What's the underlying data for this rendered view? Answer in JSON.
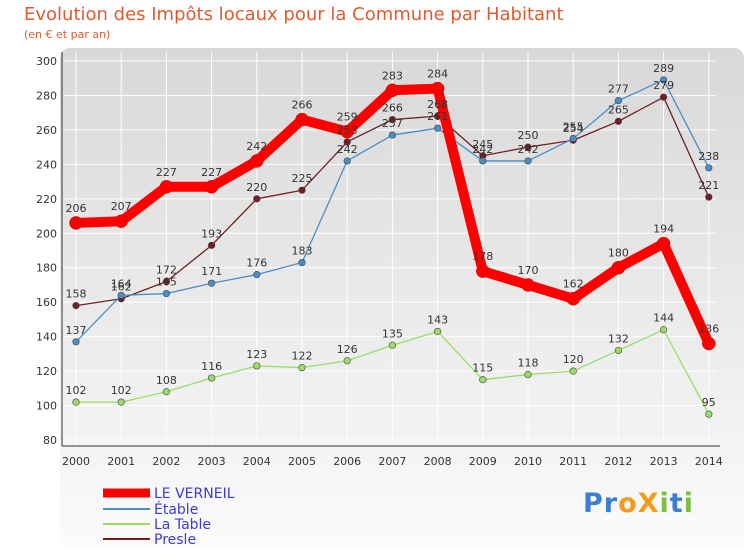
{
  "chart_data": {
    "type": "line",
    "title": "Evolution des Impôts locaux pour la Commune par Habitant",
    "subtitle": "(en € et par an)",
    "x": [
      "2000",
      "2001",
      "2002",
      "2003",
      "2004",
      "2005",
      "2006",
      "2007",
      "2008",
      "2009",
      "2010",
      "2011",
      "2012",
      "2013",
      "2014"
    ],
    "ylim": [
      80,
      300
    ],
    "yticks": [
      80,
      100,
      120,
      140,
      160,
      180,
      200,
      220,
      240,
      260,
      280,
      300
    ],
    "grid": true,
    "legend_position": "bottom-left",
    "series": [
      {
        "name": "LE VERNEIL",
        "color": "#ff0000",
        "values": [
          206,
          207,
          227,
          227,
          242,
          266,
          259,
          283,
          284,
          178,
          170,
          162,
          180,
          194,
          136
        ]
      },
      {
        "name": "Étable",
        "color": "#4a8ec8",
        "values": [
          137,
          164,
          165,
          171,
          176,
          183,
          242,
          257,
          261,
          242,
          242,
          255,
          277,
          289,
          238
        ]
      },
      {
        "name": "La Table",
        "color": "#99dd66",
        "values": [
          102,
          102,
          108,
          116,
          123,
          122,
          126,
          135,
          143,
          115,
          118,
          120,
          132,
          144,
          95
        ]
      },
      {
        "name": "Presle",
        "color": "#702020",
        "values": [
          158,
          162,
          172,
          193,
          220,
          225,
          253,
          266,
          268,
          245,
          250,
          254,
          265,
          279,
          221
        ]
      }
    ]
  },
  "logo": {
    "text": "ProXiti",
    "letters": [
      "P",
      "r",
      "o",
      "X",
      "i",
      "t",
      "i"
    ],
    "colors": [
      "#3a7fd0",
      "#3a7fd0",
      "#f29b1d",
      "#f29b1d",
      "#7ac043",
      "#3a7fd0",
      "#7ac043"
    ]
  }
}
